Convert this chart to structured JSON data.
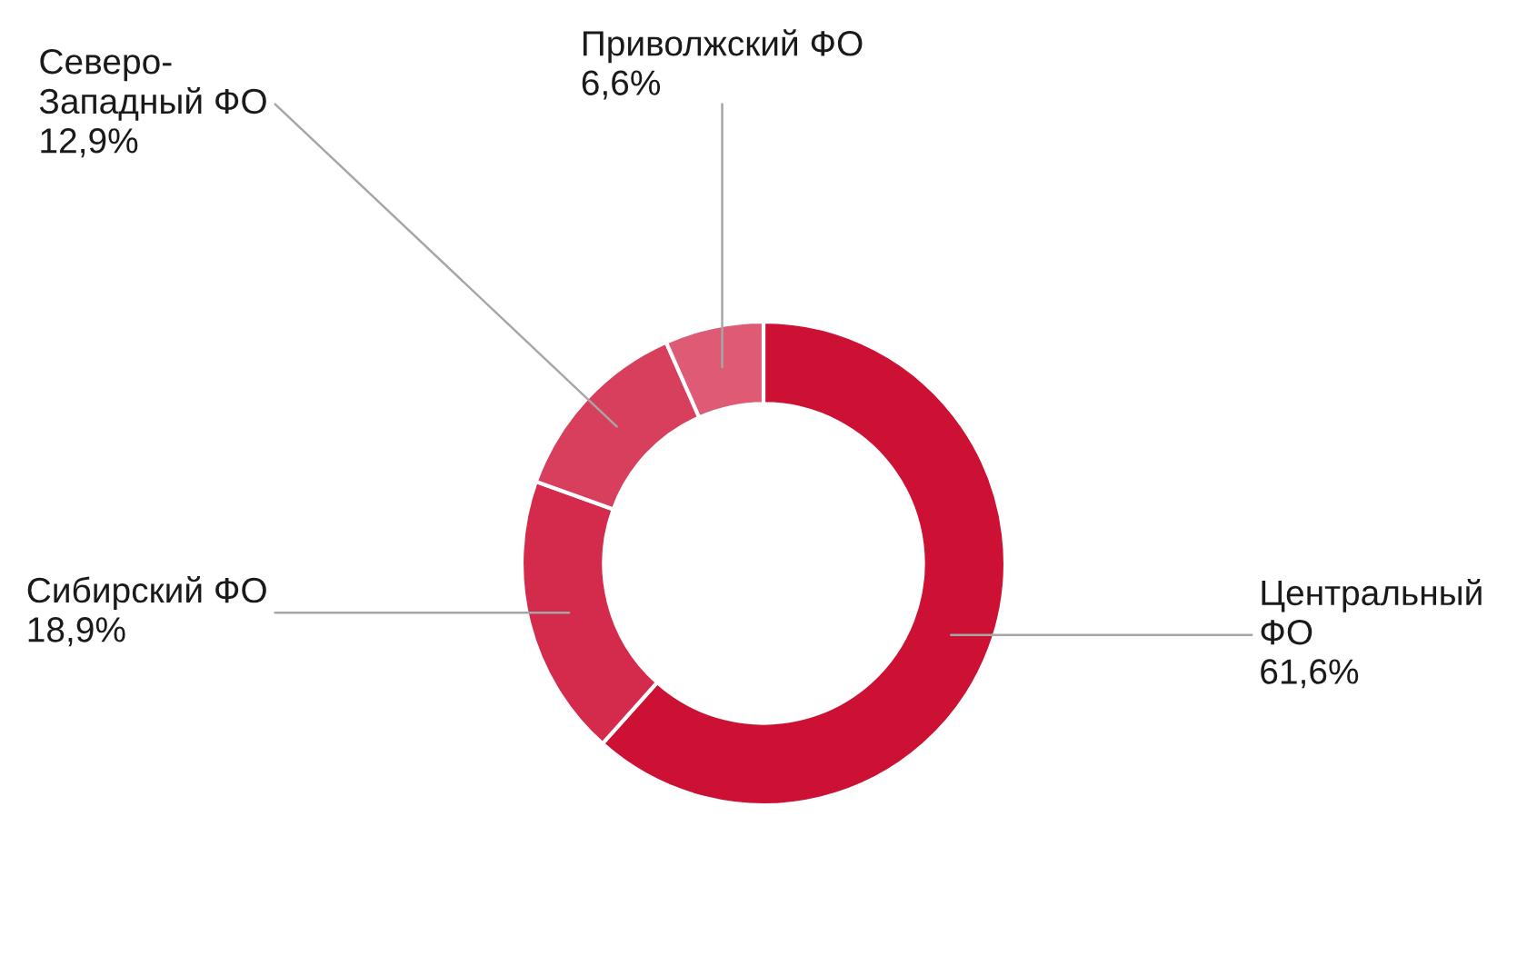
{
  "chart_data": {
    "type": "donut",
    "categories": [
      "Центральный ФО",
      "Сибирский ФО",
      "Северо-Западный ФО",
      "Приволжский ФО"
    ],
    "values": [
      61.6,
      18.9,
      12.9,
      6.6
    ],
    "colors": [
      "#cc1134",
      "#d42a4b",
      "#d83f5c",
      "#de5a75"
    ],
    "value_labels": [
      "61,6%",
      "18,9%",
      "12,9%",
      "6,6%"
    ]
  }
}
